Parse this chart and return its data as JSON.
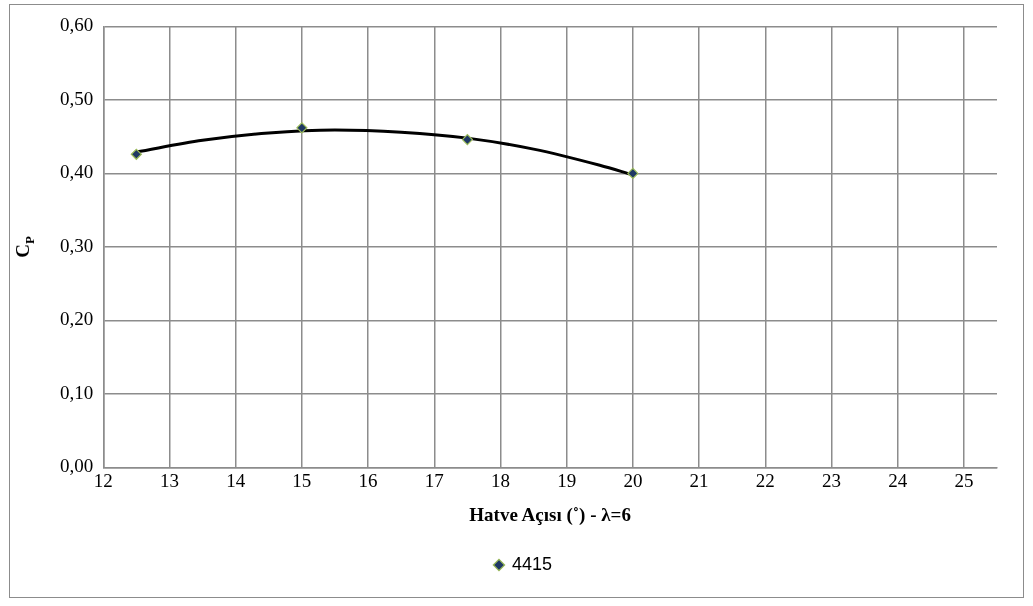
{
  "chart_data": {
    "type": "scatter",
    "xlabel": "Hatve Açısı (˚) - λ=6",
    "ylabel": "C$_{P}$",
    "series": [
      {
        "name": "4415",
        "color": "#1f3864",
        "x": [
          12.5,
          15,
          17.5,
          20
        ],
        "values": [
          0.426,
          0.462,
          0.446,
          0.4
        ],
        "marker": "diamond"
      },
      {
        "type": "line",
        "color": "#000000",
        "x": [
          12.5,
          13.5,
          14.5,
          15.5,
          16.5,
          17.5,
          18.5,
          19.5,
          20
        ],
        "values": [
          0.429,
          0.445,
          0.455,
          0.459,
          0.456,
          0.448,
          0.433,
          0.411,
          0.398
        ],
        "marker": "none",
        "line_style": "solid"
      }
    ],
    "xlim": [
      12,
      25.5
    ],
    "xticks": [
      12,
      13,
      14,
      15,
      16,
      17,
      18,
      19,
      20,
      21,
      22,
      23,
      24,
      25
    ],
    "ylim": [
      0,
      0.6
    ],
    "yticks": [
      {
        "value": 0,
        "label": "0,00"
      },
      {
        "value": 0.1,
        "label": "0,10"
      },
      {
        "value": 0.2,
        "label": "0,20"
      },
      {
        "value": 0.3,
        "label": "0,30"
      },
      {
        "value": 0.4,
        "label": "0,40"
      },
      {
        "value": 0.5,
        "label": "0,50"
      },
      {
        "value": 0.6,
        "label": "0,60"
      }
    ],
    "grid": true,
    "legend": "bottom"
  }
}
